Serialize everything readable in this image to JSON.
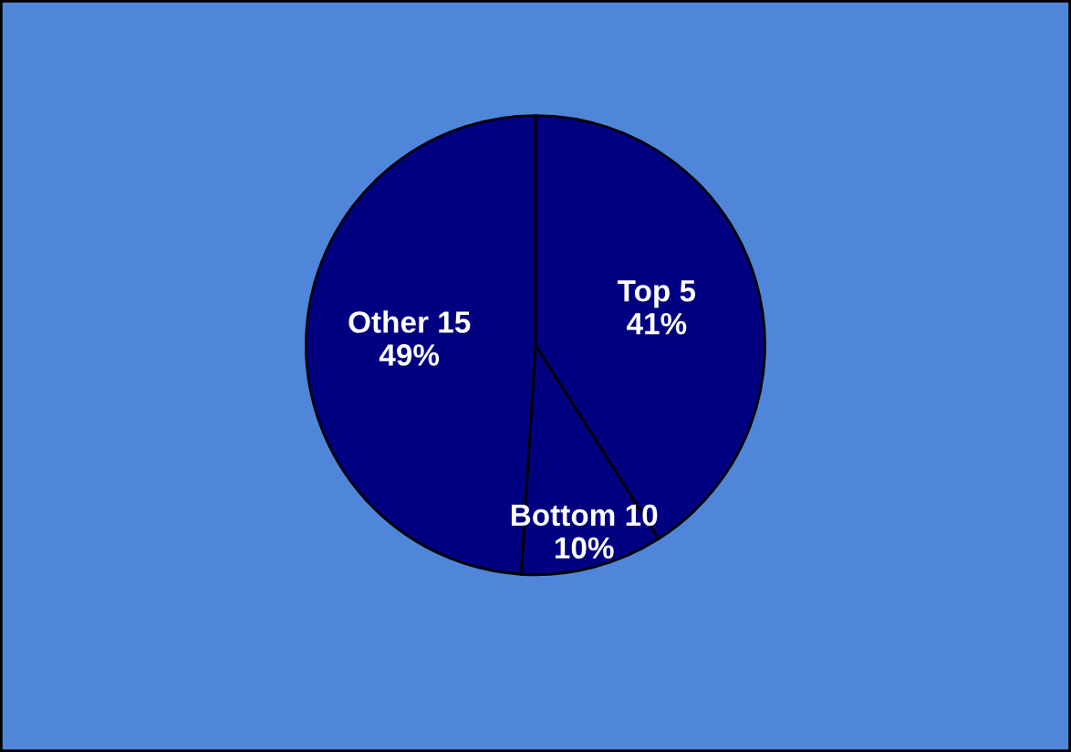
{
  "chart_data": {
    "type": "pie",
    "categories": [
      "Top 5",
      "Bottom 10",
      "Other 15"
    ],
    "values": [
      41,
      10,
      49
    ],
    "colors": [
      "#000080",
      "#000080",
      "#000080"
    ],
    "value_labels": [
      "41%",
      "10%",
      "49%"
    ]
  }
}
